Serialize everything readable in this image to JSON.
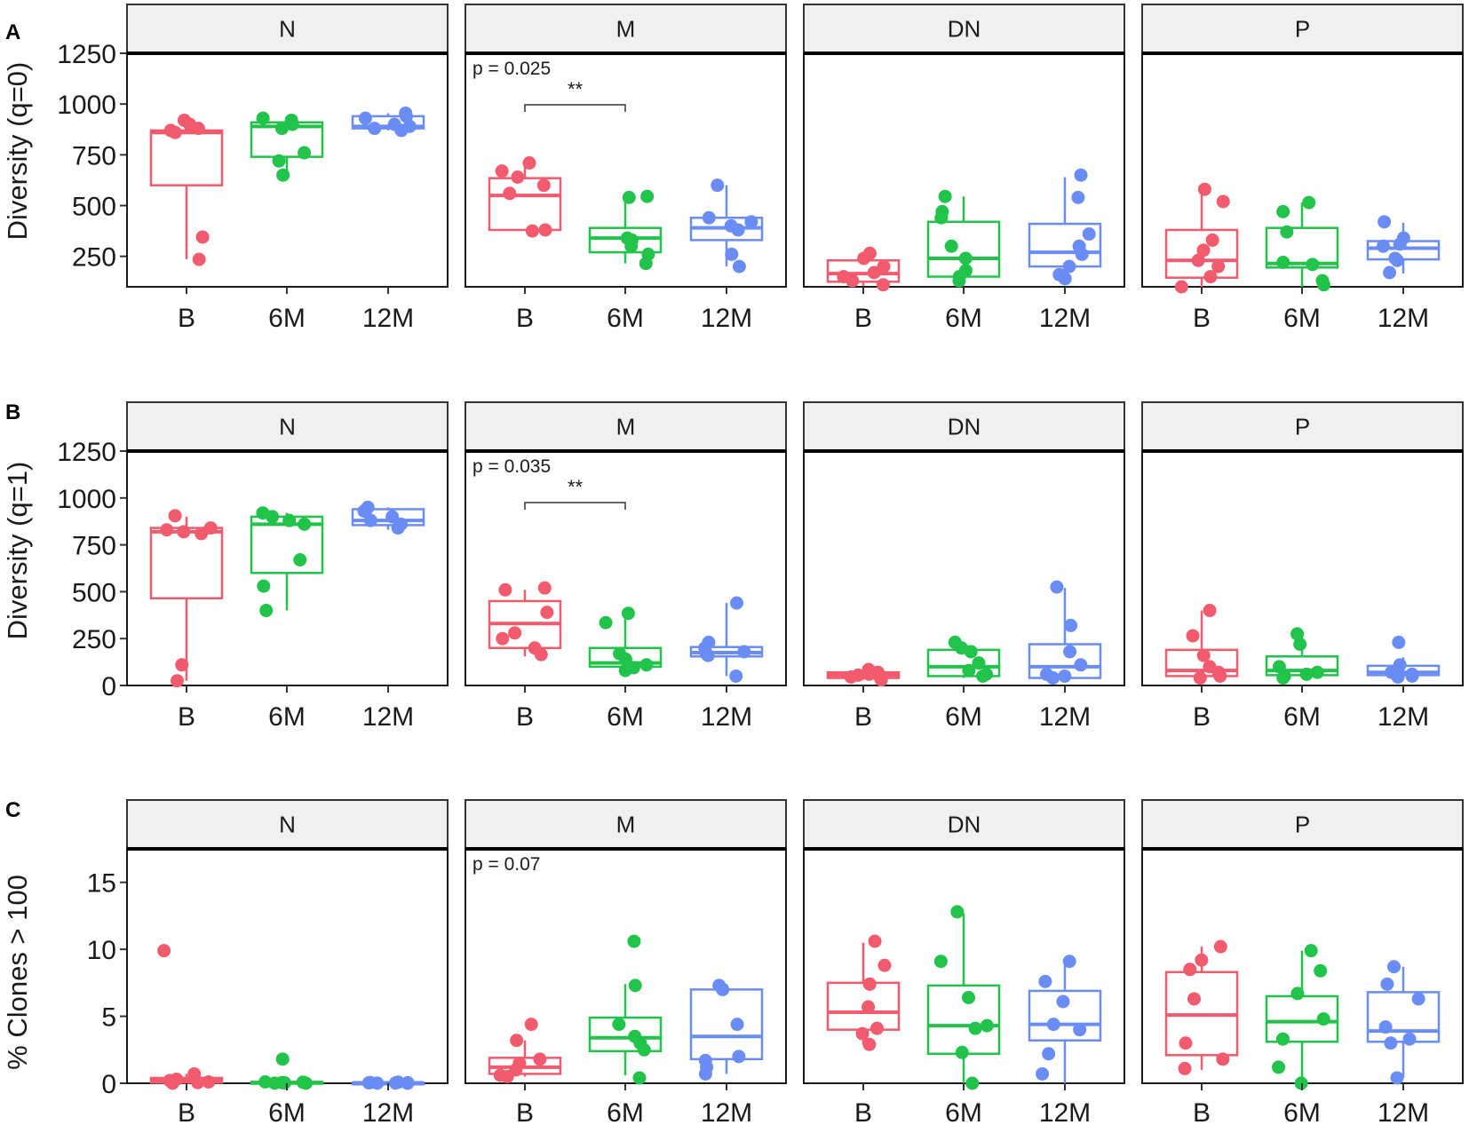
{
  "figure": {
    "colors": {
      "B": "#F25A6D",
      "6M": "#21C34A",
      "12M": "#6A8CF5"
    },
    "categories": [
      "B",
      "6M",
      "12M"
    ]
  },
  "chart_data": [
    {
      "type": "box",
      "panel_label": "A",
      "ylabel": "Diversity (q=0)",
      "ylim": [
        100,
        1250
      ],
      "yticks": [
        250,
        500,
        750,
        1000,
        1250
      ],
      "ytick_labels": [
        "250",
        "500",
        "750",
        "1000",
        "1250"
      ],
      "facets": [
        {
          "name": "N",
          "annotation": "",
          "significance": "",
          "groups": [
            {
              "cat": "B",
              "q1": 600,
              "median": 860,
              "q3": 870,
              "wlo": 235,
              "whi": 920,
              "points": [
                870,
                880,
                900,
                920,
                860,
                345,
                235
              ]
            },
            {
              "cat": "6M",
              "q1": 740,
              "median": 890,
              "q3": 910,
              "wlo": 650,
              "whi": 930,
              "points": [
                930,
                920,
                900,
                880,
                760,
                720,
                650
              ]
            },
            {
              "cat": "12M",
              "q1": 880,
              "median": 890,
              "q3": 940,
              "wlo": 870,
              "whi": 955,
              "points": [
                940,
                955,
                930,
                900,
                890,
                880,
                870
              ]
            }
          ]
        },
        {
          "name": "M",
          "annotation": "p = 0.025",
          "significance": "**",
          "groups": [
            {
              "cat": "B",
              "q1": 380,
              "median": 550,
              "q3": 635,
              "wlo": 375,
              "whi": 700,
              "points": [
                710,
                670,
                640,
                600,
                560,
                380,
                375
              ]
            },
            {
              "cat": "6M",
              "q1": 270,
              "median": 340,
              "q3": 390,
              "wlo": 215,
              "whi": 545,
              "points": [
                545,
                540,
                340,
                330,
                300,
                260,
                215
              ]
            },
            {
              "cat": "12M",
              "q1": 330,
              "median": 390,
              "q3": 440,
              "wlo": 200,
              "whi": 600,
              "points": [
                600,
                440,
                420,
                400,
                380,
                260,
                200
              ]
            }
          ]
        },
        {
          "name": "DN",
          "annotation": "",
          "significance": "",
          "groups": [
            {
              "cat": "B",
              "q1": 125,
              "median": 165,
              "q3": 230,
              "wlo": 105,
              "whi": 265,
              "points": [
                265,
                240,
                200,
                170,
                150,
                130,
                110
              ]
            },
            {
              "cat": "6M",
              "q1": 150,
              "median": 240,
              "q3": 420,
              "wlo": 120,
              "whi": 545,
              "points": [
                545,
                470,
                440,
                300,
                240,
                180,
                150,
                130
              ]
            },
            {
              "cat": "12M",
              "q1": 200,
              "median": 270,
              "q3": 410,
              "wlo": 140,
              "whi": 640,
              "points": [
                650,
                540,
                360,
                300,
                260,
                200,
                160,
                140
              ]
            }
          ]
        },
        {
          "name": "P",
          "annotation": "",
          "significance": "",
          "groups": [
            {
              "cat": "B",
              "q1": 145,
              "median": 230,
              "q3": 380,
              "wlo": 95,
              "whi": 580,
              "points": [
                580,
                520,
                330,
                280,
                230,
                200,
                150,
                100
              ]
            },
            {
              "cat": "6M",
              "q1": 195,
              "median": 215,
              "q3": 390,
              "wlo": 100,
              "whi": 515,
              "points": [
                515,
                470,
                370,
                220,
                210,
                130,
                110
              ]
            },
            {
              "cat": "12M",
              "q1": 235,
              "median": 290,
              "q3": 325,
              "wlo": 165,
              "whi": 415,
              "points": [
                420,
                340,
                310,
                300,
                240,
                230,
                170
              ]
            }
          ]
        }
      ]
    },
    {
      "type": "box",
      "panel_label": "B",
      "ylabel": "Diversity (q=1)",
      "ylim": [
        0,
        1250
      ],
      "yticks": [
        0,
        250,
        500,
        750,
        1000,
        1250
      ],
      "ytick_labels": [
        "0",
        "250",
        "500",
        "750",
        "1000",
        "1250"
      ],
      "facets": [
        {
          "name": "N",
          "annotation": "",
          "significance": "",
          "groups": [
            {
              "cat": "B",
              "q1": 465,
              "median": 820,
              "q3": 840,
              "wlo": 25,
              "whi": 900,
              "points": [
                905,
                840,
                830,
                820,
                810,
                110,
                25
              ]
            },
            {
              "cat": "6M",
              "q1": 600,
              "median": 860,
              "q3": 900,
              "wlo": 400,
              "whi": 920,
              "points": [
                920,
                900,
                880,
                860,
                670,
                530,
                400
              ]
            },
            {
              "cat": "12M",
              "q1": 855,
              "median": 880,
              "q3": 940,
              "wlo": 830,
              "whi": 950,
              "points": [
                950,
                940,
                930,
                900,
                880,
                860,
                840
              ]
            }
          ]
        },
        {
          "name": "M",
          "annotation": "p = 0.035",
          "significance": "**",
          "groups": [
            {
              "cat": "B",
              "q1": 200,
              "median": 330,
              "q3": 450,
              "wlo": 155,
              "whi": 510,
              "points": [
                520,
                510,
                390,
                280,
                250,
                200,
                165
              ]
            },
            {
              "cat": "6M",
              "q1": 100,
              "median": 120,
              "q3": 200,
              "wlo": 80,
              "whi": 385,
              "points": [
                385,
                335,
                170,
                140,
                110,
                95,
                80
              ]
            },
            {
              "cat": "12M",
              "q1": 155,
              "median": 175,
              "q3": 205,
              "wlo": 50,
              "whi": 440,
              "points": [
                440,
                230,
                200,
                180,
                170,
                160,
                50
              ]
            }
          ]
        },
        {
          "name": "DN",
          "annotation": "",
          "significance": "",
          "groups": [
            {
              "cat": "B",
              "q1": 40,
              "median": 55,
              "q3": 70,
              "wlo": 30,
              "whi": 85,
              "points": [
                85,
                70,
                60,
                55,
                45,
                40,
                30
              ]
            },
            {
              "cat": "6M",
              "q1": 50,
              "median": 100,
              "q3": 190,
              "wlo": 40,
              "whi": 230,
              "points": [
                230,
                200,
                180,
                120,
                80,
                60,
                50
              ]
            },
            {
              "cat": "12M",
              "q1": 40,
              "median": 100,
              "q3": 220,
              "wlo": 30,
              "whi": 520,
              "points": [
                525,
                320,
                180,
                110,
                60,
                50,
                40
              ]
            }
          ]
        },
        {
          "name": "P",
          "annotation": "",
          "significance": "",
          "groups": [
            {
              "cat": "B",
              "q1": 50,
              "median": 80,
              "q3": 190,
              "wlo": 40,
              "whi": 400,
              "points": [
                400,
                265,
                160,
                100,
                70,
                50,
                40
              ]
            },
            {
              "cat": "6M",
              "q1": 55,
              "median": 80,
              "q3": 155,
              "wlo": 40,
              "whi": 270,
              "points": [
                275,
                220,
                100,
                70,
                60,
                50,
                40
              ]
            },
            {
              "cat": "12M",
              "q1": 55,
              "median": 70,
              "q3": 105,
              "wlo": 40,
              "whi": 150,
              "points": [
                230,
                110,
                80,
                70,
                60,
                50,
                45
              ]
            }
          ]
        }
      ]
    },
    {
      "type": "box",
      "panel_label": "C",
      "ylabel": "% Clones > 100",
      "ylim": [
        0,
        17.5
      ],
      "yticks": [
        0,
        5,
        10,
        15
      ],
      "ytick_labels": [
        "0",
        "5",
        "10",
        "15"
      ],
      "facets": [
        {
          "name": "N",
          "annotation": "",
          "significance": "",
          "groups": [
            {
              "cat": "B",
              "q1": 0.05,
              "median": 0.2,
              "q3": 0.4,
              "wlo": 0,
              "whi": 0.7,
              "points": [
                9.9,
                0.7,
                0.3,
                0.2,
                0.1,
                0.05,
                0
              ]
            },
            {
              "cat": "6M",
              "q1": 0.02,
              "median": 0.05,
              "q3": 0.1,
              "wlo": 0,
              "whi": 0.15,
              "points": [
                1.8,
                0.1,
                0.08,
                0.05,
                0.03,
                0.01,
                0
              ]
            },
            {
              "cat": "12M",
              "q1": 0.01,
              "median": 0.03,
              "q3": 0.05,
              "wlo": 0,
              "whi": 0.08,
              "points": [
                0.08,
                0.05,
                0.04,
                0.03,
                0.02,
                0.01,
                0
              ]
            }
          ]
        },
        {
          "name": "M",
          "annotation": "p = 0.07",
          "significance": "",
          "groups": [
            {
              "cat": "B",
              "q1": 0.7,
              "median": 1.2,
              "q3": 1.9,
              "wlo": 0.5,
              "whi": 3.2,
              "points": [
                4.4,
                3.2,
                1.8,
                1.5,
                1.0,
                0.6,
                0.5
              ]
            },
            {
              "cat": "6M",
              "q1": 2.4,
              "median": 3.4,
              "q3": 4.9,
              "wlo": 0.6,
              "whi": 7.4,
              "points": [
                10.6,
                7.3,
                4.4,
                3.5,
                3.0,
                2.5,
                0.4
              ]
            },
            {
              "cat": "12M",
              "q1": 1.8,
              "median": 3.5,
              "q3": 7.0,
              "wlo": 0.7,
              "whi": 7.4,
              "points": [
                7.3,
                7.0,
                4.4,
                2.0,
                1.7,
                1.2,
                0.7
              ]
            }
          ]
        },
        {
          "name": "DN",
          "annotation": "",
          "significance": "",
          "groups": [
            {
              "cat": "B",
              "q1": 4.0,
              "median": 5.3,
              "q3": 7.5,
              "wlo": 2.9,
              "whi": 10.5,
              "points": [
                10.6,
                8.8,
                7.4,
                5.7,
                4.1,
                3.7,
                2.9
              ]
            },
            {
              "cat": "6M",
              "q1": 2.2,
              "median": 4.3,
              "q3": 7.3,
              "wlo": 0,
              "whi": 12.7,
              "points": [
                12.8,
                9.1,
                6.4,
                4.3,
                4.1,
                2.3,
                0
              ]
            },
            {
              "cat": "12M",
              "q1": 3.2,
              "median": 4.4,
              "q3": 6.9,
              "wlo": 0,
              "whi": 8.8,
              "points": [
                9.1,
                7.6,
                6.1,
                4.4,
                4.0,
                2.2,
                0.7
              ]
            }
          ]
        },
        {
          "name": "P",
          "annotation": "",
          "significance": "",
          "groups": [
            {
              "cat": "B",
              "q1": 2.1,
              "median": 5.1,
              "q3": 8.3,
              "wlo": 1.0,
              "whi": 10.2,
              "points": [
                10.2,
                9.2,
                8.5,
                6.3,
                3.0,
                1.8,
                1.1
              ]
            },
            {
              "cat": "6M",
              "q1": 3.1,
              "median": 4.6,
              "q3": 6.5,
              "wlo": 0,
              "whi": 9.9,
              "points": [
                9.9,
                8.4,
                6.7,
                4.8,
                3.3,
                1.2,
                0
              ]
            },
            {
              "cat": "12M",
              "q1": 3.1,
              "median": 3.9,
              "q3": 6.8,
              "wlo": 0.4,
              "whi": 8.7,
              "points": [
                8.7,
                7.4,
                6.3,
                4.2,
                3.3,
                3.0,
                0.4
              ]
            }
          ]
        }
      ]
    }
  ]
}
